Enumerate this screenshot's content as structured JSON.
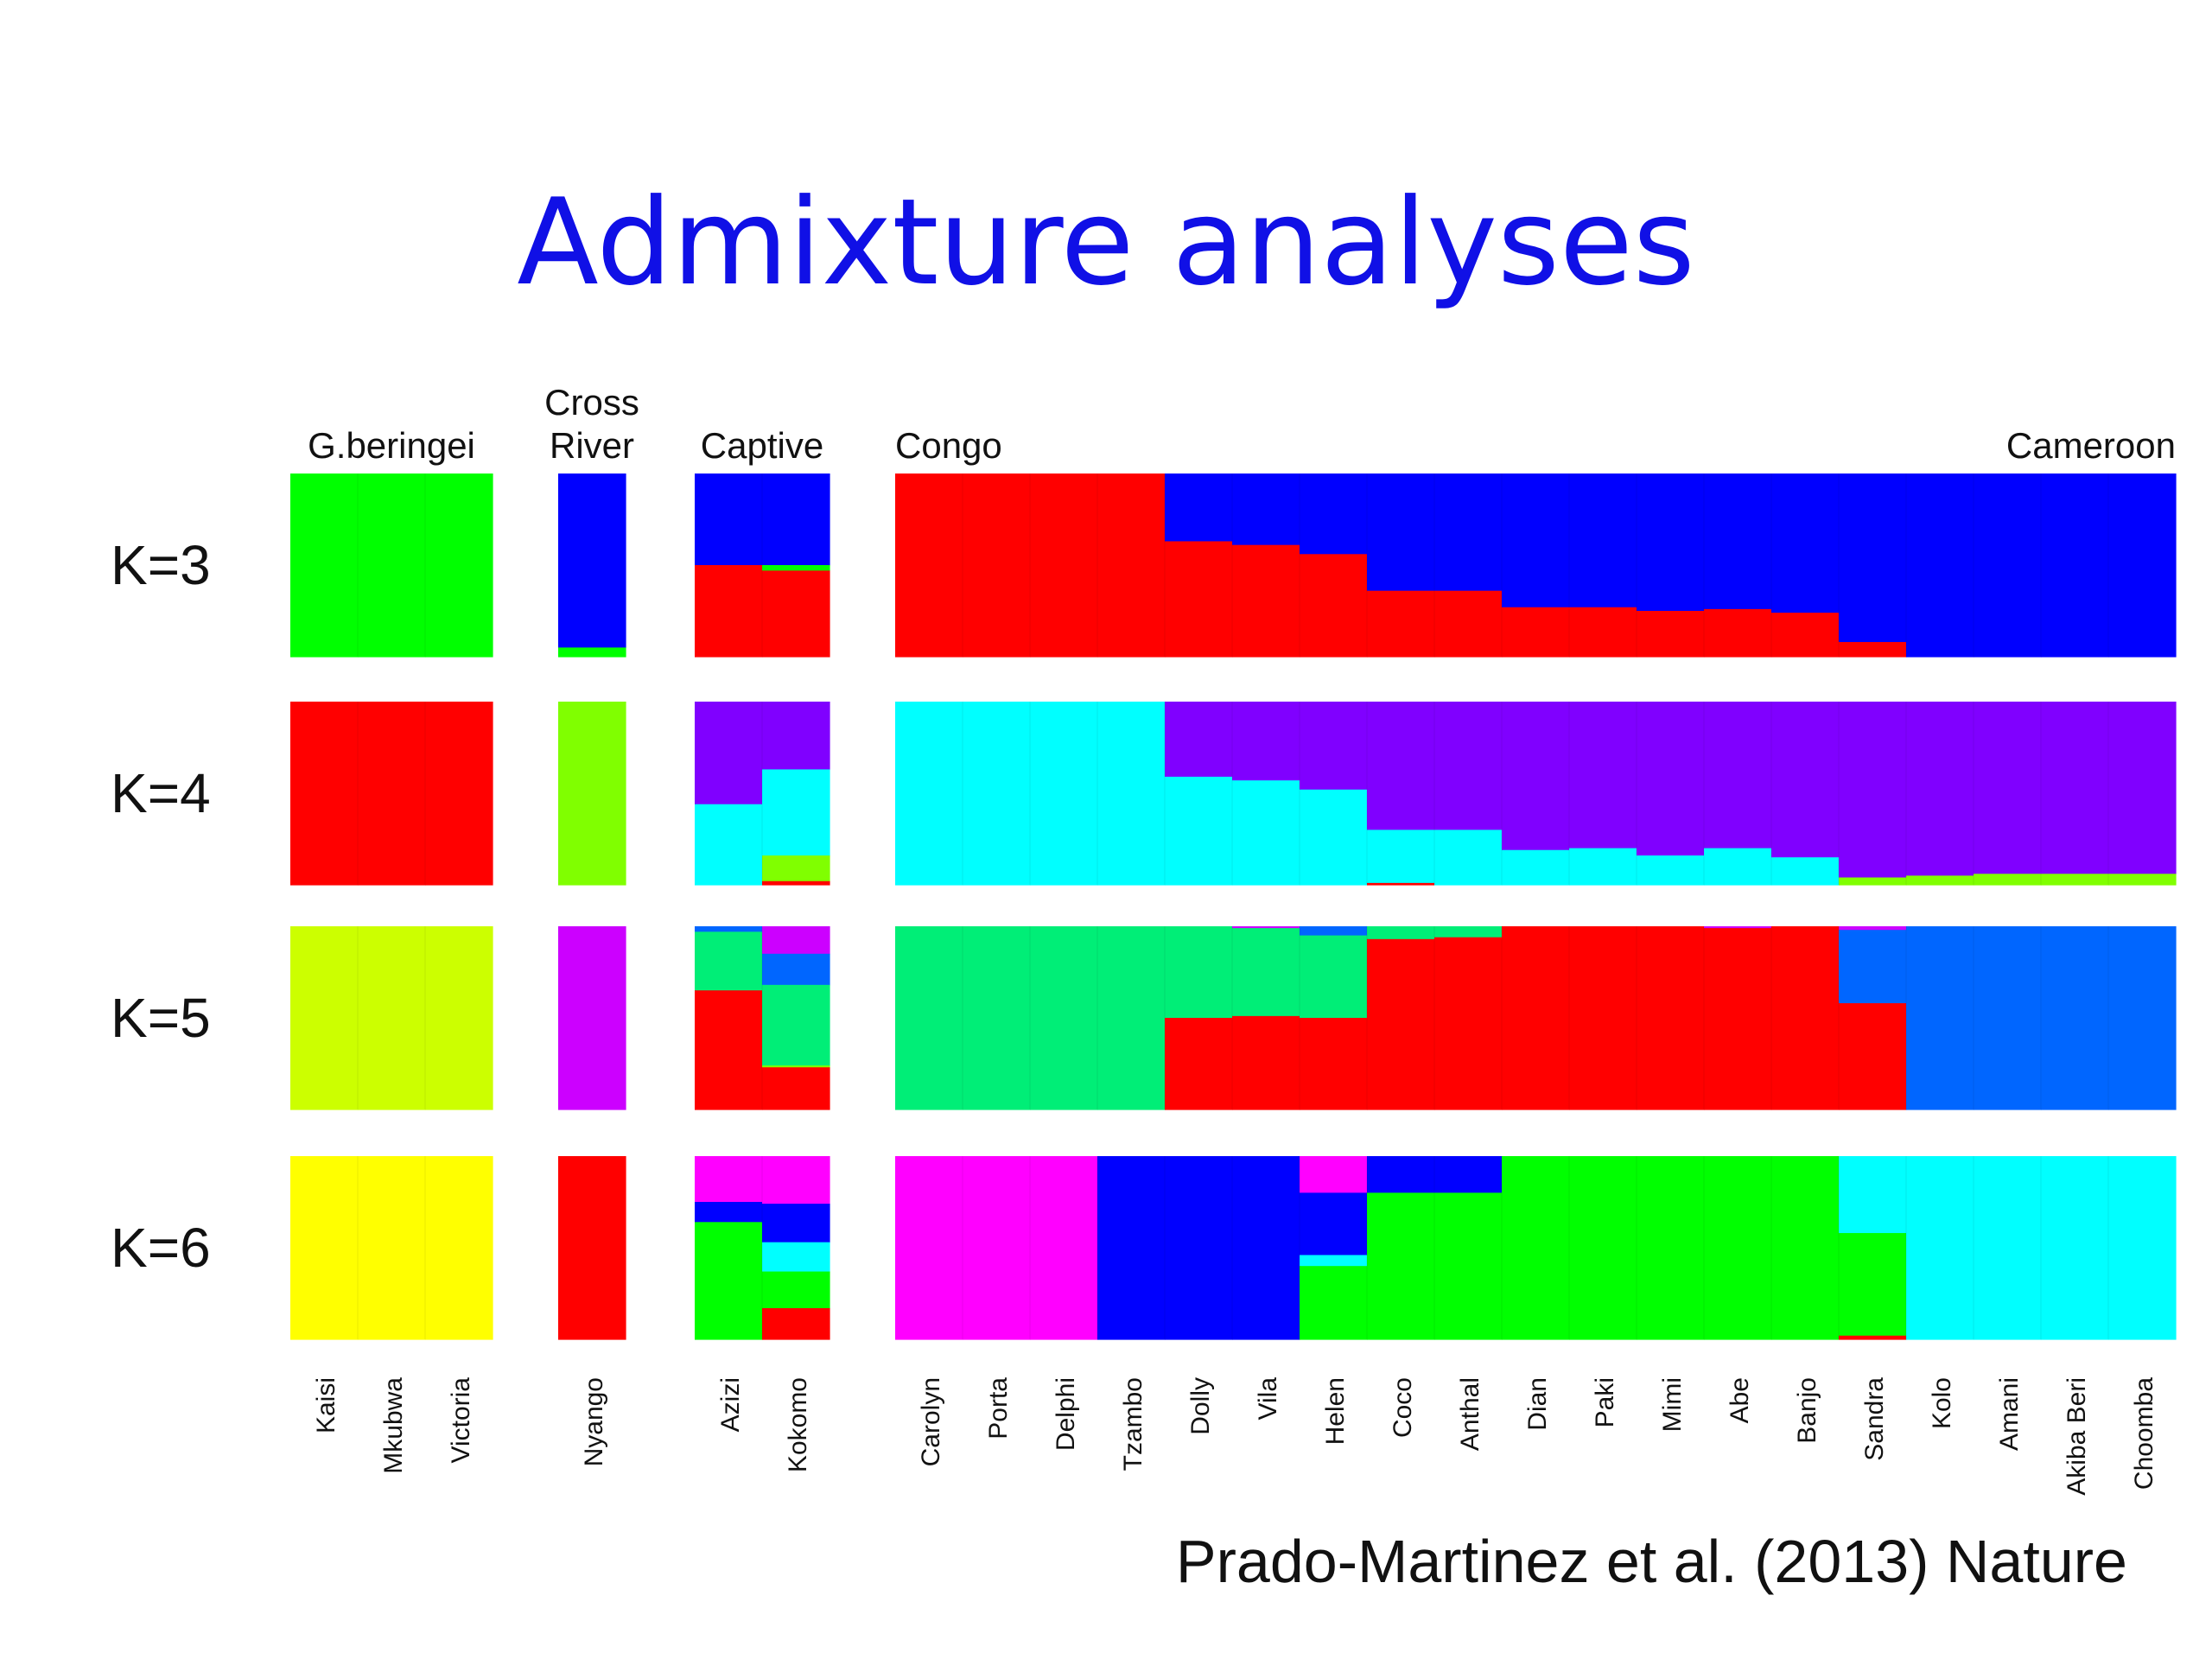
{
  "slide": {
    "title": "Admixture analyses",
    "citation": "Prado-Martinez et al. (2013) Nature"
  },
  "chart_data": {
    "type": "bar",
    "subtype": "stacked-100-percent",
    "groups": [
      {
        "label": "G.beringei",
        "samples": [
          "Kaisi",
          "Mkubwa",
          "Victoria"
        ]
      },
      {
        "label": "Cross River",
        "samples": [
          "Nyango"
        ]
      },
      {
        "label": "Captive",
        "samples": [
          "Azizi",
          "Kokomo"
        ]
      },
      {
        "label": "Congo",
        "label_right": "Cameroon",
        "samples": [
          "Carolyn",
          "Porta",
          "Delphi",
          "Tzambo",
          "Dolly",
          "Vila",
          "Helen",
          "Coco",
          "Anthal",
          "Dian",
          "Paki",
          "Mimi",
          "Abe",
          "Banjo",
          "Sandra",
          "Kolo",
          "Amani",
          "Akiba Beri",
          "Choomba"
        ]
      }
    ],
    "colors": {
      "red": "#ff0000",
      "blue": "#0000ff",
      "green": "#00ff00",
      "cyan": "#00ffff",
      "purple": "#8000ff",
      "lime": "#80ff00",
      "chartreuse": "#ccff00",
      "violet": "#cc00ff",
      "mint": "#00ee77",
      "azure": "#0066ff",
      "magenta": "#ff00ff",
      "yellow": "#ffff00"
    },
    "rows": [
      {
        "label": "K=3",
        "proportions": {
          "Kaisi": [
            [
              "green",
              1
            ]
          ],
          "Mkubwa": [
            [
              "green",
              1
            ]
          ],
          "Victoria": [
            [
              "green",
              1
            ]
          ],
          "Nyango": [
            [
              "blue",
              0.95
            ],
            [
              "green",
              0.05
            ]
          ],
          "Azizi": [
            [
              "blue",
              0.5
            ],
            [
              "red",
              0.5
            ]
          ],
          "Kokomo": [
            [
              "blue",
              0.5
            ],
            [
              "green",
              0.03
            ],
            [
              "red",
              0.47
            ]
          ],
          "Carolyn": [
            [
              "red",
              1
            ]
          ],
          "Porta": [
            [
              "red",
              1
            ]
          ],
          "Delphi": [
            [
              "red",
              1
            ]
          ],
          "Tzambo": [
            [
              "red",
              1
            ]
          ],
          "Dolly": [
            [
              "blue",
              0.37
            ],
            [
              "red",
              0.63
            ]
          ],
          "Vila": [
            [
              "blue",
              0.39
            ],
            [
              "red",
              0.61
            ]
          ],
          "Helen": [
            [
              "blue",
              0.44
            ],
            [
              "red",
              0.56
            ]
          ],
          "Coco": [
            [
              "blue",
              0.64
            ],
            [
              "red",
              0.36
            ]
          ],
          "Anthal": [
            [
              "blue",
              0.64
            ],
            [
              "red",
              0.36
            ]
          ],
          "Dian": [
            [
              "blue",
              0.73
            ],
            [
              "red",
              0.27
            ]
          ],
          "Paki": [
            [
              "blue",
              0.73
            ],
            [
              "red",
              0.27
            ]
          ],
          "Mimi": [
            [
              "blue",
              0.75
            ],
            [
              "red",
              0.25
            ]
          ],
          "Abe": [
            [
              "blue",
              0.74
            ],
            [
              "red",
              0.26
            ]
          ],
          "Banjo": [
            [
              "blue",
              0.76
            ],
            [
              "red",
              0.24
            ]
          ],
          "Sandra": [
            [
              "blue",
              0.92
            ],
            [
              "red",
              0.08
            ]
          ],
          "Kolo": [
            [
              "blue",
              1
            ]
          ],
          "Amani": [
            [
              "blue",
              1
            ]
          ],
          "Akiba Beri": [
            [
              "blue",
              1
            ]
          ],
          "Choomba": [
            [
              "blue",
              1
            ]
          ]
        }
      },
      {
        "label": "K=4",
        "proportions": {
          "Kaisi": [
            [
              "red",
              1
            ]
          ],
          "Mkubwa": [
            [
              "red",
              1
            ]
          ],
          "Victoria": [
            [
              "red",
              1
            ]
          ],
          "Nyango": [
            [
              "lime",
              1
            ]
          ],
          "Azizi": [
            [
              "purple",
              0.56
            ],
            [
              "cyan",
              0.44
            ]
          ],
          "Kokomo": [
            [
              "purple",
              0.37
            ],
            [
              "cyan",
              0.47
            ],
            [
              "lime",
              0.14
            ],
            [
              "red",
              0.02
            ]
          ],
          "Carolyn": [
            [
              "cyan",
              1
            ]
          ],
          "Porta": [
            [
              "cyan",
              1
            ]
          ],
          "Delphi": [
            [
              "cyan",
              1
            ]
          ],
          "Tzambo": [
            [
              "cyan",
              1
            ]
          ],
          "Dolly": [
            [
              "purple",
              0.41
            ],
            [
              "cyan",
              0.59
            ]
          ],
          "Vila": [
            [
              "purple",
              0.43
            ],
            [
              "cyan",
              0.57
            ]
          ],
          "Helen": [
            [
              "purple",
              0.48
            ],
            [
              "cyan",
              0.52
            ]
          ],
          "Coco": [
            [
              "purple",
              0.7
            ],
            [
              "cyan",
              0.29
            ],
            [
              "red",
              0.01
            ]
          ],
          "Anthal": [
            [
              "purple",
              0.7
            ],
            [
              "cyan",
              0.3
            ]
          ],
          "Dian": [
            [
              "purple",
              0.81
            ],
            [
              "cyan",
              0.19
            ]
          ],
          "Paki": [
            [
              "purple",
              0.8
            ],
            [
              "cyan",
              0.2
            ]
          ],
          "Mimi": [
            [
              "purple",
              0.84
            ],
            [
              "cyan",
              0.16
            ]
          ],
          "Abe": [
            [
              "purple",
              0.8
            ],
            [
              "cyan",
              0.2
            ]
          ],
          "Banjo": [
            [
              "purple",
              0.85
            ],
            [
              "cyan",
              0.15
            ]
          ],
          "Sandra": [
            [
              "purple",
              0.96
            ],
            [
              "lime",
              0.04
            ]
          ],
          "Kolo": [
            [
              "purple",
              0.95
            ],
            [
              "lime",
              0.05
            ]
          ],
          "Amani": [
            [
              "purple",
              0.94
            ],
            [
              "lime",
              0.06
            ]
          ],
          "Akiba Beri": [
            [
              "purple",
              0.94
            ],
            [
              "lime",
              0.06
            ]
          ],
          "Choomba": [
            [
              "purple",
              0.94
            ],
            [
              "lime",
              0.06
            ]
          ]
        }
      },
      {
        "label": "K=5",
        "proportions": {
          "Kaisi": [
            [
              "chartreuse",
              1
            ]
          ],
          "Mkubwa": [
            [
              "chartreuse",
              1
            ]
          ],
          "Victoria": [
            [
              "chartreuse",
              1
            ]
          ],
          "Nyango": [
            [
              "violet",
              1
            ]
          ],
          "Azizi": [
            [
              "azure",
              0.03
            ],
            [
              "mint",
              0.32
            ],
            [
              "red",
              0.65
            ]
          ],
          "Kokomo": [
            [
              "violet",
              0.15
            ],
            [
              "azure",
              0.17
            ],
            [
              "mint",
              0.44
            ],
            [
              "lime",
              0.01
            ],
            [
              "red",
              0.23
            ]
          ],
          "Carolyn": [
            [
              "mint",
              1
            ]
          ],
          "Porta": [
            [
              "mint",
              1
            ]
          ],
          "Delphi": [
            [
              "mint",
              1
            ]
          ],
          "Tzambo": [
            [
              "mint",
              1
            ]
          ],
          "Dolly": [
            [
              "mint",
              0.5
            ],
            [
              "red",
              0.5
            ]
          ],
          "Vila": [
            [
              "violet",
              0.01
            ],
            [
              "mint",
              0.48
            ],
            [
              "red",
              0.51
            ]
          ],
          "Helen": [
            [
              "azure",
              0.05
            ],
            [
              "mint",
              0.45
            ],
            [
              "red",
              0.5
            ]
          ],
          "Coco": [
            [
              "mint",
              0.07
            ],
            [
              "red",
              0.93
            ]
          ],
          "Anthal": [
            [
              "mint",
              0.06
            ],
            [
              "red",
              0.94
            ]
          ],
          "Dian": [
            [
              "red",
              1
            ]
          ],
          "Paki": [
            [
              "red",
              1
            ]
          ],
          "Mimi": [
            [
              "red",
              1
            ]
          ],
          "Abe": [
            [
              "violet",
              0.01
            ],
            [
              "red",
              0.99
            ]
          ],
          "Banjo": [
            [
              "red",
              1
            ]
          ],
          "Sandra": [
            [
              "violet",
              0.02
            ],
            [
              "azure",
              0.4
            ],
            [
              "red",
              0.58
            ]
          ],
          "Kolo": [
            [
              "azure",
              1
            ]
          ],
          "Amani": [
            [
              "azure",
              1
            ]
          ],
          "Akiba Beri": [
            [
              "azure",
              1
            ]
          ],
          "Choomba": [
            [
              "azure",
              1
            ]
          ]
        }
      },
      {
        "label": "K=6",
        "proportions": {
          "Kaisi": [
            [
              "yellow",
              1
            ]
          ],
          "Mkubwa": [
            [
              "yellow",
              1
            ]
          ],
          "Victoria": [
            [
              "yellow",
              1
            ]
          ],
          "Nyango": [
            [
              "red",
              1
            ]
          ],
          "Azizi": [
            [
              "magenta",
              0.25
            ],
            [
              "blue",
              0.11
            ],
            [
              "green",
              0.64
            ]
          ],
          "Kokomo": [
            [
              "magenta",
              0.26
            ],
            [
              "blue",
              0.21
            ],
            [
              "cyan",
              0.16
            ],
            [
              "green",
              0.2
            ],
            [
              "red",
              0.17
            ]
          ],
          "Carolyn": [
            [
              "magenta",
              1
            ]
          ],
          "Porta": [
            [
              "magenta",
              1
            ]
          ],
          "Delphi": [
            [
              "magenta",
              1
            ]
          ],
          "Tzambo": [
            [
              "blue",
              1
            ]
          ],
          "Dolly": [
            [
              "blue",
              1
            ]
          ],
          "Vila": [
            [
              "blue",
              1
            ]
          ],
          "Helen": [
            [
              "magenta",
              0.2
            ],
            [
              "blue",
              0.34
            ],
            [
              "cyan",
              0.06
            ],
            [
              "green",
              0.4
            ]
          ],
          "Coco": [
            [
              "blue",
              0.2
            ],
            [
              "green",
              0.8
            ]
          ],
          "Anthal": [
            [
              "blue",
              0.2
            ],
            [
              "green",
              0.8
            ]
          ],
          "Dian": [
            [
              "green",
              1
            ]
          ],
          "Paki": [
            [
              "green",
              1
            ]
          ],
          "Mimi": [
            [
              "green",
              1
            ]
          ],
          "Abe": [
            [
              "green",
              1
            ]
          ],
          "Banjo": [
            [
              "green",
              1
            ]
          ],
          "Sandra": [
            [
              "cyan",
              0.42
            ],
            [
              "green",
              0.56
            ],
            [
              "red",
              0.02
            ]
          ],
          "Kolo": [
            [
              "cyan",
              1
            ]
          ],
          "Amani": [
            [
              "cyan",
              1
            ]
          ],
          "Akiba Beri": [
            [
              "cyan",
              1
            ]
          ],
          "Choomba": [
            [
              "cyan",
              1
            ]
          ]
        }
      }
    ]
  }
}
